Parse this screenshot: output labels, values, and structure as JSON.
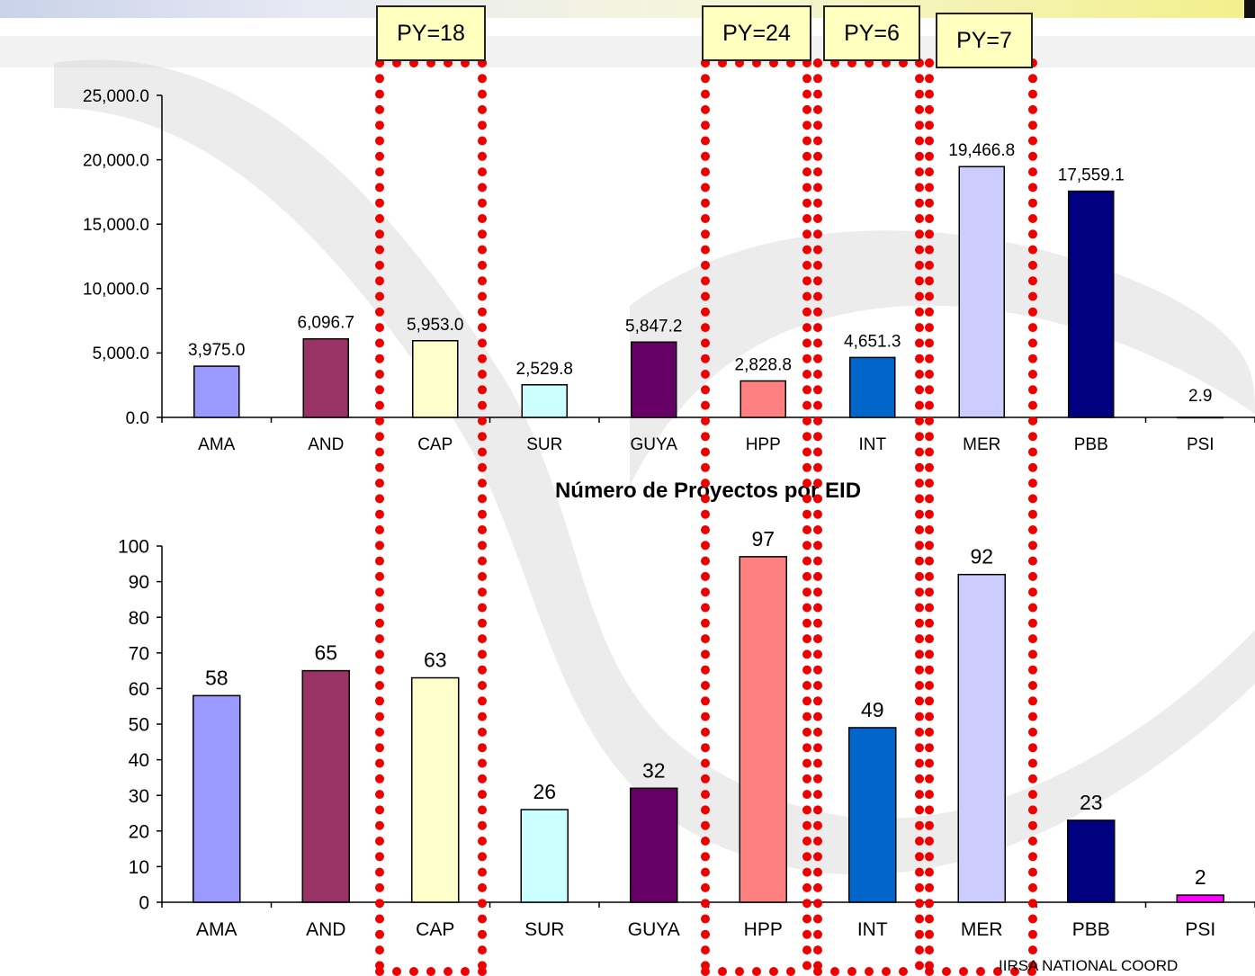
{
  "chart_data": [
    {
      "type": "bar",
      "title": "",
      "categories": [
        "AMA",
        "AND",
        "CAP",
        "SUR",
        "GUYA",
        "HPP",
        "INT",
        "MER",
        "PBB",
        "PSI"
      ],
      "values": [
        3975.0,
        6096.7,
        5953.0,
        2529.8,
        5847.2,
        2828.8,
        4651.3,
        19466.8,
        17559.1,
        2.9
      ],
      "value_labels": [
        "3,975.0",
        "6,096.7",
        "5,953.0",
        "2,529.8",
        "5,847.2",
        "2,828.8",
        "4,651.3",
        "19,466.8",
        "17,559.1",
        "2.9"
      ],
      "ylim": [
        0,
        25000
      ],
      "yticks": [
        "0.0",
        "5,000.0",
        "10,000.0",
        "15,000.0",
        "20,000.0",
        "25,000.0"
      ],
      "colors": [
        "#9999ff",
        "#993366",
        "#ffffcc",
        "#ccffff",
        "#660066",
        "#ff8080",
        "#0066cc",
        "#ccccff",
        "#000080",
        "#ff00ff"
      ],
      "grid": false
    },
    {
      "type": "bar",
      "title": "Número de Proyectos por EID",
      "categories": [
        "AMA",
        "AND",
        "CAP",
        "SUR",
        "GUYA",
        "HPP",
        "INT",
        "MER",
        "PBB",
        "PSI"
      ],
      "values": [
        58,
        65,
        63,
        26,
        32,
        97,
        49,
        92,
        23,
        2
      ],
      "value_labels": [
        "58",
        "65",
        "63",
        "26",
        "32",
        "97",
        "49",
        "92",
        "23",
        "2"
      ],
      "ylim": [
        0,
        100
      ],
      "yticks": [
        "0",
        "10",
        "20",
        "30",
        "40",
        "50",
        "60",
        "70",
        "80",
        "90",
        "100"
      ],
      "colors": [
        "#9999ff",
        "#993366",
        "#ffffcc",
        "#ccffff",
        "#660066",
        "#ff8080",
        "#0066cc",
        "#ccccff",
        "#000080",
        "#ff00ff"
      ],
      "grid": false
    }
  ],
  "highlights": [
    {
      "label": "PY=18",
      "category": "CAP"
    },
    {
      "label": "PY=24",
      "category": "HPP"
    },
    {
      "label": "PY=6",
      "category": "INT"
    },
    {
      "label": "PY=7",
      "category": "MER"
    }
  ],
  "footer": "IIRSA NATIONAL COORD"
}
